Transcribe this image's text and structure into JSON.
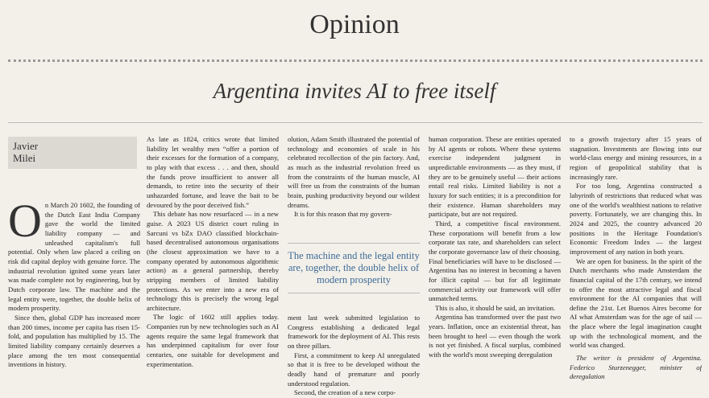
{
  "header": {
    "section": "Opinion"
  },
  "headline": "Argentina invites AI to free itself",
  "author": "Javier Milei",
  "drop_cap": "O",
  "columns": [
    [
      "n March 20 1602, the founding of the Dutch East India Company gave the world the limited liability company — and unleashed capitalism's full potential. Only when law placed a ceiling on risk did capital deploy with genuine force. The industrial revolution ignited some years later was made complete not by engineering, but by Dutch corporate law. The machine and the legal entity were, together, the double helix of modern prosperity.",
      "Since then, global GDP has increased more than 200 times, income per capita has risen 15-fold, and population has multiplied by 15. The limited liability company certainly deserves a place among the ten most consequential inventions in history."
    ],
    [
      "As late as 1824, critics wrote that limited liability let wealthy men “offer a portion of their excesses for the formation of a company, to play with that excess . . . and then, should the funds prove insufficient to answer all demands, to retire into the security of their unhazarded fortune, and leave the bait to be devoured by the poor deceived fish.”",
      "This debate has now resurfaced — in a new guise. A 2023 US district court ruling in Sarcuni vs bZx DAO classified blockchain-based decentralised autonomous organisations (the closest approximation we have to a company operated by autonomous algorithmic action) as a general partnership, thereby stripping members of limited liability protections. As we enter into a new era of technology this is precisely the wrong legal architecture.",
      "The logic of 1602 still applies today. Companies run by new technologies such as AI agents require the same legal framework that has underpinned capitalism for over four centuries, one suitable for development and experimentation."
    ],
    [
      "olution, Adam Smith illustrated the potential of technology and economies of scale in his celebrated recollection of the pin factory. And, as much as the industrial revolution freed us from the constraints of the human muscle, AI will free us from the constraints of the human brain, pushing productivity beyond our wildest dreams.",
      "It is for this reason that my govern-"
    ],
    [
      "human corporation. These are entities operated by AI agents or robots. Where these systems exercise independent judgment in unpredictable environments — as they must, if they are to be genuinely useful — their actions entail real risks. Limited liability is not a luxury for such entities; it is a precondition for their existence. Human shareholders may participate, but are not required.",
      "Third, a competitive fiscal environment. These corporations will benefit from a low corporate tax rate, and shareholders can select the corporate governance law of their choosing. Final beneficiaries will have to be disclosed — Argentina has no interest in becoming a haven for illicit capital — but for all legitimate commercial activity our framework will offer unmatched terms.",
      "This is also, it should be said, an invitation.",
      "Argentina has transformed over the past two years. Inflation, once an existential threat, has been brought to heel — even though the work is not yet finished. A fiscal surplus, combined with the world's most sweeping deregulation"
    ],
    [
      "to a growth trajectory after 15 years of stagnation. Investments are flowing into our world-class energy and mining resources, in a region of geopolitical stability that is increasingly rare.",
      "For too long, Argentina constructed a labyrinth of restrictions that reduced what was one of the world's wealthiest nations to relative poverty. Fortunately, we are changing this. In 2024 and 2025, the country advanced 20 positions in the Heritage Foundation's Economic Freedom Index — the largest improvement of any nation in both years.",
      "We are open for business. In the spirit of the Dutch merchants who made Amsterdam the financial capital of the 17th century, we intend to offer the most attractive legal and fiscal environment for the AI companies that will define the 21st. Let Buenos Aires become for AI what Amsterdam was for the age of sail — the place where the legal imagination caught up with the technological moment, and the world was changed."
    ]
  ],
  "pull_quote": "The machine and the legal entity are, together, the double helix of modern prosperity",
  "column3_after_quote": [
    "ment last week submitted legislation to Congress establishing a dedicated legal framework for the deployment of AI. This rests on three pillars.",
    "First, a commitment to keep AI unregulated so that it is free to be developed without the deadly hand of premature and poorly understood regulation.",
    "Second, the creation of a new corpo-"
  ],
  "footnote": "The writer is president of Argentina. Federico Sturzenegger, minister of deregulation"
}
